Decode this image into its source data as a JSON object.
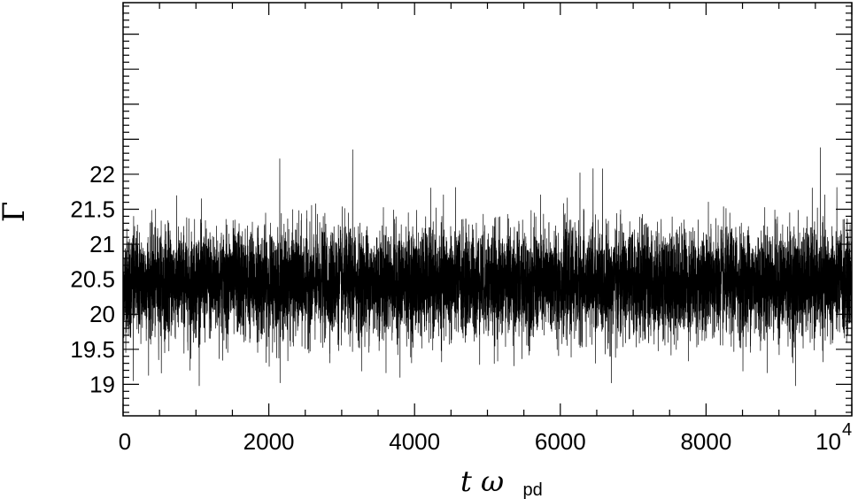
{
  "chart_data": {
    "type": "line",
    "title": "",
    "xlabel_main": "t ω",
    "xlabel_sub": "pd",
    "ylabel": "Γ",
    "xlim": [
      0,
      10000
    ],
    "ylim": [
      18.55,
      24.45
    ],
    "x_ticks": [
      {
        "value": 0,
        "label": "0"
      },
      {
        "value": 2000,
        "label": "2000"
      },
      {
        "value": 4000,
        "label": "4000"
      },
      {
        "value": 6000,
        "label": "6000"
      },
      {
        "value": 8000,
        "label": "8000"
      },
      {
        "value": 10000,
        "label": "10",
        "exponent": "4"
      }
    ],
    "y_ticks": [
      {
        "value": 19,
        "label": "19"
      },
      {
        "value": 19.5,
        "label": "19.5"
      },
      {
        "value": 20,
        "label": "20"
      },
      {
        "value": 20.5,
        "label": "20.5"
      },
      {
        "value": 21,
        "label": "21"
      },
      {
        "value": 21.5,
        "label": "21.5"
      },
      {
        "value": 22,
        "label": "22"
      }
    ],
    "grid": false,
    "legend": "none",
    "series": [
      {
        "mean": 20.45,
        "std": 0.38,
        "min": 18.98,
        "max": 22.38,
        "n_points": 10000,
        "extremes": [
          {
            "x": 2150,
            "y": 22.22
          },
          {
            "x": 3150,
            "y": 22.35
          },
          {
            "x": 6450,
            "y": 22.08
          },
          {
            "x": 6270,
            "y": 22.02
          },
          {
            "x": 9570,
            "y": 22.38
          },
          {
            "x": 3800,
            "y": 19.1
          },
          {
            "x": 6700,
            "y": 19.02
          },
          {
            "x": 9230,
            "y": 18.98
          },
          {
            "x": 920,
            "y": 19.2
          },
          {
            "x": 140,
            "y": 19.05
          }
        ],
        "color": "#000000"
      }
    ],
    "frame_color": "#000000"
  }
}
